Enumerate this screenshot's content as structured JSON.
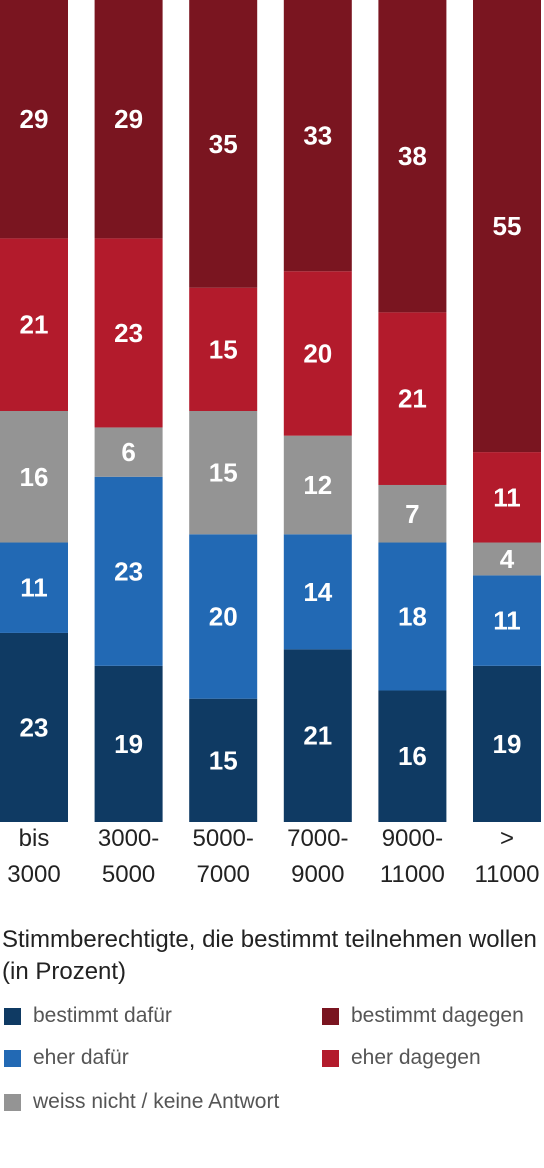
{
  "chart_data": {
    "type": "bar",
    "stacked": true,
    "categories": [
      [
        "bis",
        "3000"
      ],
      [
        "3000-",
        "5000"
      ],
      [
        "5000-",
        "7000"
      ],
      [
        "7000-",
        "9000"
      ],
      [
        "9000-",
        "11000"
      ],
      [
        ">",
        "11000"
      ]
    ],
    "series": [
      {
        "name": "bestimmt dafür",
        "color": "#0f3a63",
        "values": [
          23,
          19,
          15,
          21,
          16,
          19
        ]
      },
      {
        "name": "eher dafür",
        "color": "#2269b4",
        "values": [
          11,
          23,
          20,
          14,
          18,
          11
        ]
      },
      {
        "name": "weiss nicht / keine Antwort",
        "color": "#949494",
        "values": [
          16,
          6,
          15,
          12,
          7,
          4
        ]
      },
      {
        "name": "eher dagegen",
        "color": "#b31b2c",
        "values": [
          21,
          23,
          15,
          20,
          21,
          11
        ]
      },
      {
        "name": "bestimmt dagegen",
        "color": "#7a1520",
        "values": [
          29,
          29,
          35,
          33,
          38,
          55
        ]
      }
    ],
    "ylim": [
      0,
      100
    ],
    "caption": "Stimmberechtigte, die bestimmt teilnehmen wollen (in Prozent)",
    "legend": "bottom"
  }
}
